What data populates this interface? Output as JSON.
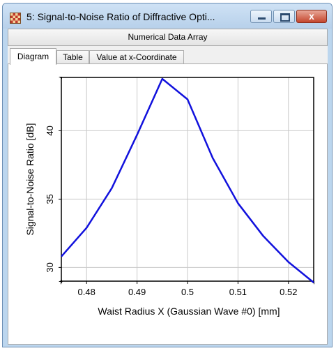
{
  "window": {
    "title": "5: Signal-to-Noise Ratio of Diffractive Opti...",
    "subheader": "Numerical Data Array",
    "buttons": {
      "close": "x"
    }
  },
  "tabs": [
    {
      "label": "Diagram",
      "active": true
    },
    {
      "label": "Table",
      "active": false
    },
    {
      "label": "Value at x-Coordinate",
      "active": false
    }
  ],
  "chart_data": {
    "type": "line",
    "xlabel": "Waist Radius X (Gaussian Wave #0) [mm]",
    "ylabel": "Signal-to-Noise Ratio [dB]",
    "xlim": [
      0.475,
      0.525
    ],
    "ylim": [
      29.0,
      43.9
    ],
    "x_ticks": [
      "0.48",
      "0.49",
      "0.5",
      "0.51",
      "0.52"
    ],
    "y_ticks": [
      "30",
      "35",
      "40"
    ],
    "grid": true,
    "line_color": "#1111dd",
    "series": [
      {
        "x": [
          0.475,
          0.48,
          0.485,
          0.49,
          0.495,
          0.5,
          0.505,
          0.51,
          0.515,
          0.52,
          0.525
        ],
        "y": [
          30.8,
          32.9,
          35.8,
          39.7,
          43.8,
          42.3,
          38.0,
          34.7,
          32.3,
          30.4,
          28.9
        ]
      }
    ]
  }
}
